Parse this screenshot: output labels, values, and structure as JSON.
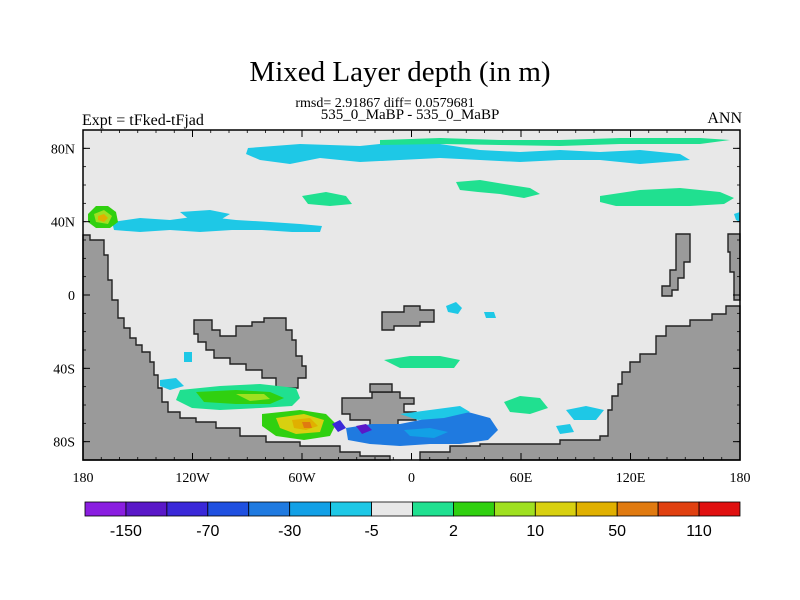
{
  "title": "Mixed Layer depth (in m)",
  "stats_line": "rmsd= 2.91867 diff= 0.0579681",
  "case_line": "535_0_MaBP - 535_0_MaBP",
  "experiment_label": "Expt = tFked-tFjad",
  "season_label": "ANN",
  "map": {
    "lon_range": [
      -180,
      180
    ],
    "lat_range": [
      -90,
      90
    ],
    "lon_ticks": [
      {
        "lon": -180,
        "label": "180"
      },
      {
        "lon": -120,
        "label": "120W"
      },
      {
        "lon": -60,
        "label": "60W"
      },
      {
        "lon": 0,
        "label": "0"
      },
      {
        "lon": 60,
        "label": "60E"
      },
      {
        "lon": 120,
        "label": "120E"
      },
      {
        "lon": 180,
        "label": "180"
      }
    ],
    "lat_ticks": [
      {
        "lat": 80,
        "label": "80N"
      },
      {
        "lat": 40,
        "label": "40N"
      },
      {
        "lat": 0,
        "label": "0"
      },
      {
        "lat": -40,
        "label": "40S"
      },
      {
        "lat": -80,
        "label": "80S"
      }
    ],
    "ocean_color": "#e8e8e8",
    "land_color": "#9a9a9a"
  },
  "colorbar": {
    "colors": [
      "#8a1ee0",
      "#5a18c8",
      "#3a28d8",
      "#1f50e0",
      "#1f7ae0",
      "#12a0e6",
      "#1ec8e6",
      "#e8e8e8",
      "#20e090",
      "#30d010",
      "#9fe020",
      "#d8d010",
      "#e0b000",
      "#e07a10",
      "#e04010",
      "#e01010"
    ],
    "labels": [
      {
        "index": 1,
        "label": "-150"
      },
      {
        "index": 3,
        "label": "-70"
      },
      {
        "index": 5,
        "label": "-30"
      },
      {
        "index": 7,
        "label": "-5"
      },
      {
        "index": 9,
        "label": "2"
      },
      {
        "index": 11,
        "label": "10"
      },
      {
        "index": 13,
        "label": "50"
      },
      {
        "index": 15,
        "label": "110"
      }
    ]
  }
}
